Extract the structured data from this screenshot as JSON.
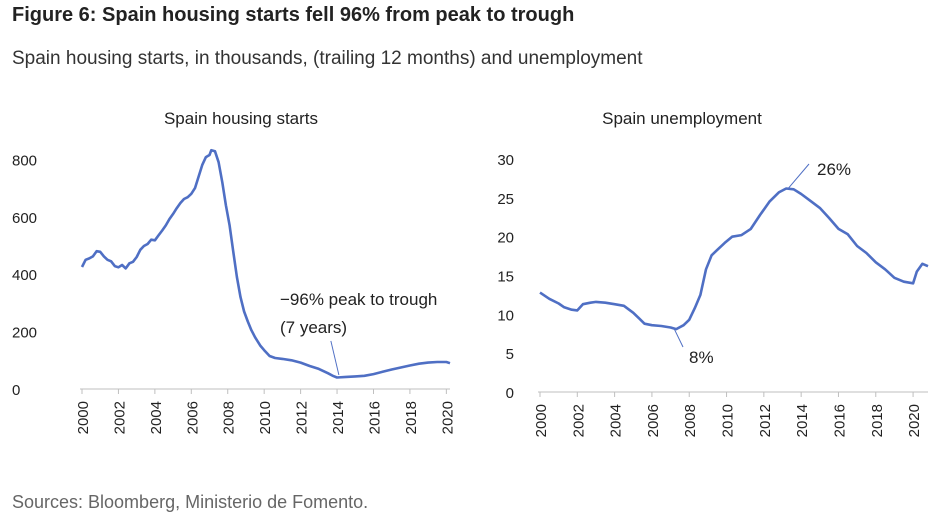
{
  "figure": {
    "title": "Figure 6: Spain housing starts fell 96% from peak to trough",
    "subtitle": "Spain housing starts, in thousands, (trailing 12 months) and unemployment",
    "source": "Sources: Bloomberg, Ministerio de Fomento."
  },
  "colors": {
    "line": "#4f6fc4",
    "axis": "#bfbfbf",
    "text": "#222222"
  },
  "chart_data": [
    {
      "type": "line",
      "title": "Spain housing starts",
      "xlim": [
        2000,
        2020.2
      ],
      "ylim": [
        0,
        850
      ],
      "x_ticks": [
        "2000",
        "2002",
        "2004",
        "2006",
        "2008",
        "2010",
        "2012",
        "2014",
        "2016",
        "2018",
        "2020"
      ],
      "y_ticks": [
        "0",
        "200",
        "400",
        "600",
        "800"
      ],
      "grid": false,
      "annotations": [
        {
          "text_lines": [
            "−96% peak to trough",
            "(7 years)"
          ],
          "x": 2014.1,
          "y": 42
        }
      ],
      "series": [
        {
          "points": [
            [
              2000.0,
              425
            ],
            [
              2000.2,
              450
            ],
            [
              2000.4,
              455
            ],
            [
              2000.6,
              462
            ],
            [
              2000.8,
              480
            ],
            [
              2001.0,
              478
            ],
            [
              2001.2,
              462
            ],
            [
              2001.4,
              450
            ],
            [
              2001.6,
              445
            ],
            [
              2001.8,
              428
            ],
            [
              2002.0,
              424
            ],
            [
              2002.2,
              432
            ],
            [
              2002.4,
              420
            ],
            [
              2002.6,
              438
            ],
            [
              2002.8,
              443
            ],
            [
              2003.0,
              460
            ],
            [
              2003.2,
              485
            ],
            [
              2003.4,
              498
            ],
            [
              2003.6,
              505
            ],
            [
              2003.8,
              520
            ],
            [
              2004.0,
              518
            ],
            [
              2004.2,
              535
            ],
            [
              2004.4,
              552
            ],
            [
              2004.6,
              570
            ],
            [
              2004.8,
              592
            ],
            [
              2005.0,
              610
            ],
            [
              2005.2,
              630
            ],
            [
              2005.4,
              648
            ],
            [
              2005.6,
              662
            ],
            [
              2005.8,
              668
            ],
            [
              2006.0,
              680
            ],
            [
              2006.2,
              700
            ],
            [
              2006.4,
              740
            ],
            [
              2006.6,
              780
            ],
            [
              2006.8,
              808
            ],
            [
              2007.0,
              815
            ],
            [
              2007.1,
              832
            ],
            [
              2007.3,
              828
            ],
            [
              2007.5,
              790
            ],
            [
              2007.7,
              720
            ],
            [
              2007.9,
              640
            ],
            [
              2008.1,
              570
            ],
            [
              2008.3,
              480
            ],
            [
              2008.5,
              390
            ],
            [
              2008.7,
              320
            ],
            [
              2008.9,
              270
            ],
            [
              2009.1,
              235
            ],
            [
              2009.3,
              205
            ],
            [
              2009.5,
              180
            ],
            [
              2009.8,
              150
            ],
            [
              2010.0,
              135
            ],
            [
              2010.3,
              115
            ],
            [
              2010.6,
              108
            ],
            [
              2011.0,
              105
            ],
            [
              2011.5,
              100
            ],
            [
              2012.0,
              92
            ],
            [
              2012.5,
              80
            ],
            [
              2013.0,
              70
            ],
            [
              2013.5,
              55
            ],
            [
              2013.8,
              45
            ],
            [
              2014.0,
              40
            ],
            [
              2014.5,
              42
            ],
            [
              2015.0,
              44
            ],
            [
              2015.5,
              46
            ],
            [
              2016.0,
              52
            ],
            [
              2016.5,
              60
            ],
            [
              2017.0,
              68
            ],
            [
              2017.5,
              75
            ],
            [
              2018.0,
              82
            ],
            [
              2018.5,
              88
            ],
            [
              2019.0,
              92
            ],
            [
              2019.5,
              94
            ],
            [
              2020.0,
              94
            ],
            [
              2020.2,
              90
            ]
          ]
        }
      ]
    },
    {
      "type": "line",
      "title": "Spain unemployment",
      "xlim": [
        2000,
        2020.8
      ],
      "ylim": [
        0,
        30
      ],
      "x_ticks": [
        "2000",
        "2002",
        "2004",
        "2006",
        "2008",
        "2010",
        "2012",
        "2014",
        "2016",
        "2018",
        "2020"
      ],
      "y_ticks": [
        "0",
        "5",
        "10",
        "15",
        "20",
        "25",
        "30"
      ],
      "grid": false,
      "annotations": [
        {
          "text": "26%",
          "x": 2013.3,
          "y": 26.2
        },
        {
          "text": "8%",
          "x": 2007.2,
          "y": 8.1
        }
      ],
      "series": [
        {
          "points": [
            [
              2000.0,
              12.8
            ],
            [
              2000.5,
              12.0
            ],
            [
              2001.0,
              11.4
            ],
            [
              2001.3,
              10.9
            ],
            [
              2001.7,
              10.6
            ],
            [
              2002.0,
              10.5
            ],
            [
              2002.3,
              11.3
            ],
            [
              2002.7,
              11.5
            ],
            [
              2003.0,
              11.6
            ],
            [
              2003.5,
              11.5
            ],
            [
              2004.0,
              11.3
            ],
            [
              2004.5,
              11.1
            ],
            [
              2005.0,
              10.2
            ],
            [
              2005.3,
              9.5
            ],
            [
              2005.6,
              8.8
            ],
            [
              2006.0,
              8.6
            ],
            [
              2006.5,
              8.5
            ],
            [
              2007.0,
              8.3
            ],
            [
              2007.3,
              8.1
            ],
            [
              2007.7,
              8.6
            ],
            [
              2008.0,
              9.3
            ],
            [
              2008.3,
              10.8
            ],
            [
              2008.6,
              12.5
            ],
            [
              2008.9,
              15.8
            ],
            [
              2009.2,
              17.6
            ],
            [
              2009.5,
              18.3
            ],
            [
              2009.9,
              19.2
            ],
            [
              2010.3,
              20.0
            ],
            [
              2010.8,
              20.2
            ],
            [
              2011.3,
              21.0
            ],
            [
              2011.8,
              22.8
            ],
            [
              2012.3,
              24.5
            ],
            [
              2012.8,
              25.7
            ],
            [
              2013.2,
              26.2
            ],
            [
              2013.6,
              26.1
            ],
            [
              2014.0,
              25.5
            ],
            [
              2014.5,
              24.6
            ],
            [
              2015.0,
              23.7
            ],
            [
              2015.5,
              22.4
            ],
            [
              2016.0,
              21.0
            ],
            [
              2016.5,
              20.3
            ],
            [
              2017.0,
              18.8
            ],
            [
              2017.5,
              17.9
            ],
            [
              2018.0,
              16.7
            ],
            [
              2018.5,
              15.8
            ],
            [
              2019.0,
              14.7
            ],
            [
              2019.5,
              14.2
            ],
            [
              2020.0,
              14.0
            ],
            [
              2020.2,
              15.5
            ],
            [
              2020.5,
              16.5
            ],
            [
              2020.8,
              16.2
            ]
          ]
        }
      ]
    }
  ]
}
